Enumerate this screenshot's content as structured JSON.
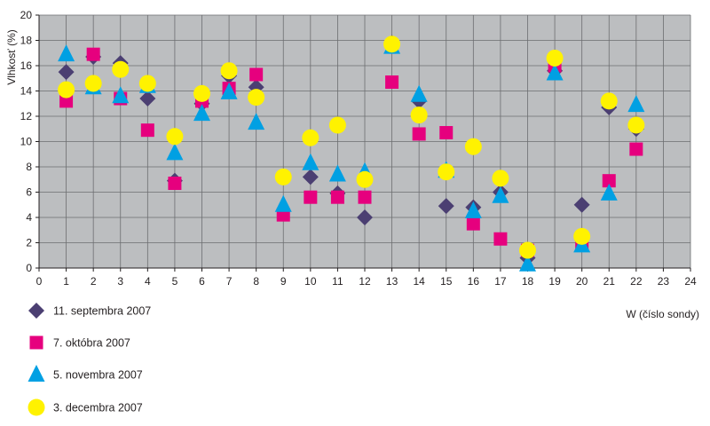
{
  "chart_data": {
    "type": "scatter",
    "title": "",
    "xlabel": "W (číslo sondy)",
    "ylabel": "Vlhkosť (%)",
    "xlim": [
      0,
      24
    ],
    "ylim": [
      0,
      20
    ],
    "x_ticks": [
      0,
      1,
      2,
      3,
      4,
      5,
      6,
      7,
      8,
      9,
      10,
      11,
      12,
      13,
      14,
      15,
      16,
      17,
      18,
      19,
      20,
      21,
      22,
      23,
      24
    ],
    "y_ticks": [
      0,
      2,
      4,
      6,
      8,
      10,
      12,
      14,
      16,
      18,
      20
    ],
    "grid": true,
    "plot_background": "#bcbec0",
    "grid_color": "#6d6e71",
    "legend_position": "bottom-left",
    "series": [
      {
        "name": "11. septembra 2007",
        "marker": "diamond",
        "color": "#4b3f72",
        "x": [
          1,
          2,
          3,
          4,
          5,
          6,
          7,
          8,
          10,
          11,
          12,
          13,
          14,
          15,
          16,
          17,
          18,
          19,
          20,
          21,
          22
        ],
        "y": [
          15.5,
          16.7,
          16.2,
          13.4,
          6.9,
          13.0,
          15.2,
          14.3,
          7.2,
          5.9,
          4.0,
          17.8,
          13.2,
          4.9,
          4.8,
          6.0,
          0.8,
          15.6,
          5.0,
          12.7,
          11.0
        ]
      },
      {
        "name": "7. októbra 2007",
        "marker": "square",
        "color": "#e6007e",
        "x": [
          1,
          2,
          3,
          4,
          5,
          6,
          7,
          8,
          9,
          10,
          11,
          12,
          13,
          14,
          15,
          16,
          17,
          18,
          19,
          20,
          21,
          22
        ],
        "y": [
          13.2,
          16.9,
          13.4,
          10.9,
          6.7,
          13.2,
          14.2,
          15.3,
          4.2,
          5.6,
          5.6,
          5.6,
          14.7,
          10.6,
          10.7,
          3.5,
          2.3,
          1.4,
          16.0,
          2.0,
          6.9,
          9.4
        ]
      },
      {
        "name": "5. novembra 2007",
        "marker": "triangle",
        "color": "#00a0e3",
        "x": [
          1,
          2,
          3,
          4,
          5,
          6,
          7,
          8,
          9,
          10,
          11,
          12,
          13,
          14,
          15,
          16,
          17,
          18,
          19,
          20,
          21,
          22
        ],
        "y": [
          16.9,
          14.3,
          13.6,
          14.4,
          9.1,
          12.2,
          13.9,
          11.5,
          5.0,
          8.3,
          7.4,
          7.6,
          17.5,
          13.7,
          7.7,
          4.5,
          5.7,
          0.3,
          15.4,
          1.8,
          5.9,
          12.9
        ]
      },
      {
        "name": "3. decembra 2007",
        "marker": "circle",
        "color": "#fff200",
        "x": [
          1,
          2,
          3,
          4,
          5,
          6,
          7,
          8,
          9,
          10,
          11,
          12,
          13,
          14,
          15,
          16,
          17,
          18,
          19,
          20,
          21,
          22
        ],
        "y": [
          14.1,
          14.6,
          15.7,
          14.6,
          10.4,
          13.8,
          15.6,
          13.5,
          7.2,
          10.3,
          11.3,
          7.0,
          17.7,
          12.1,
          7.6,
          9.6,
          7.1,
          1.4,
          16.6,
          2.5,
          13.2,
          11.3
        ]
      }
    ]
  }
}
